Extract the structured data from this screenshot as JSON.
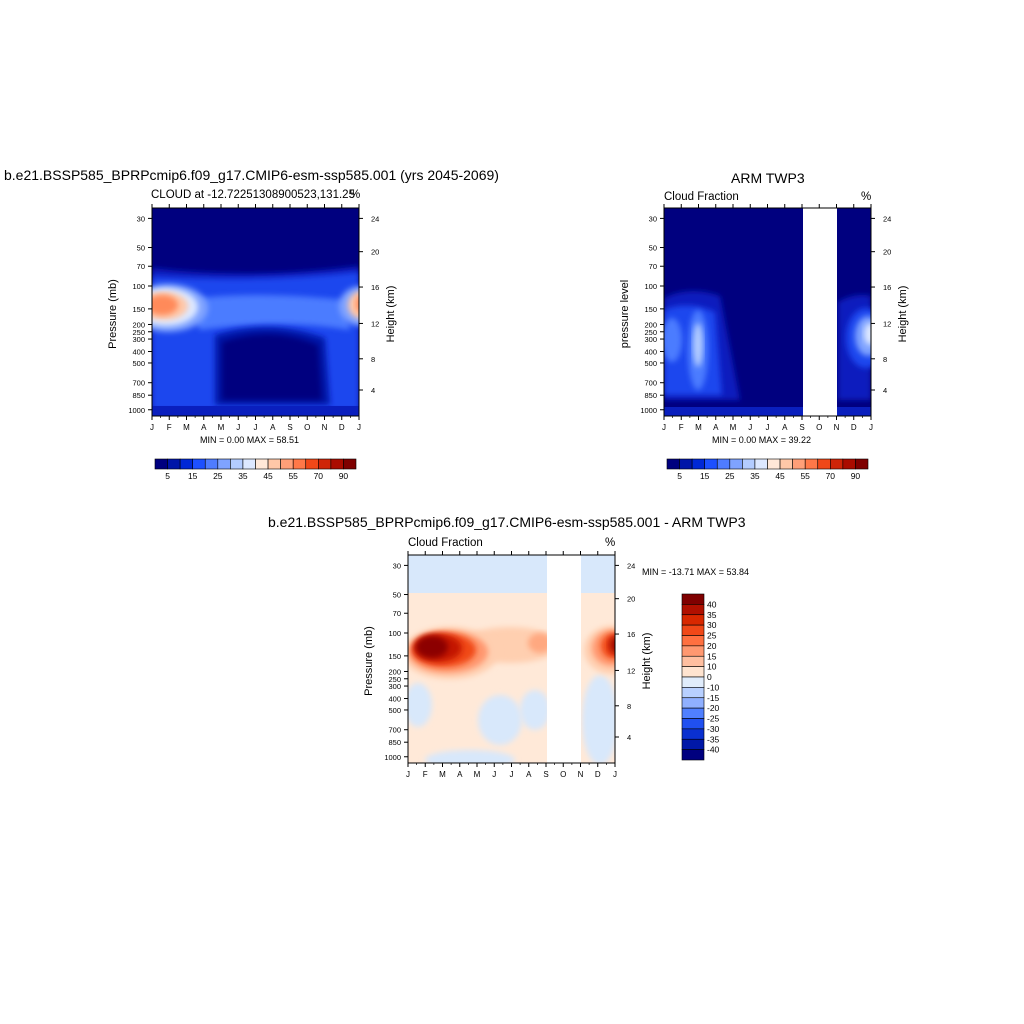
{
  "chart_data": [
    {
      "type": "heatmap",
      "title": "b.e21.BSSP585_BPRPcmip6.f09_g17.CMIP6-esm-ssp585.001 (yrs 2045-2069)",
      "subtitle_left": "CLOUD at -12.72251308900523,131.25",
      "subtitle_right": "%",
      "ylabel": "Pressure (mb)",
      "ylabel_right": "Height (km)",
      "x_ticks": [
        "J",
        "F",
        "M",
        "A",
        "M",
        "J",
        "J",
        "A",
        "S",
        "O",
        "N",
        "D",
        "J"
      ],
      "pressure_ticks": [
        "30",
        "50",
        "70",
        "100",
        "150",
        "200",
        "250",
        "300",
        "400",
        "500",
        "700",
        "850",
        "1000"
      ],
      "height_ticks": [
        "24",
        "20",
        "16",
        "12",
        "8",
        "4"
      ],
      "min_max": "MIN =   0.00 MAX =  58.51",
      "colorbar_labels": [
        "5",
        "15",
        "25",
        "35",
        "45",
        "55",
        "70",
        "90"
      ],
      "colors": [
        "#00007f",
        "#0015a8",
        "#0028d6",
        "#1d50ff",
        "#4f7cff",
        "#7fa3ff",
        "#b3ccff",
        "#dde8ff",
        "#ffe8d8",
        "#ffc8a8",
        "#ff9f78",
        "#ff7848",
        "#f04818",
        "#cf2508",
        "#aa0c00",
        "#7f0000"
      ]
    },
    {
      "type": "heatmap",
      "title": "ARM TWP3",
      "subtitle_left": "Cloud Fraction",
      "subtitle_right": "%",
      "ylabel": "pressure level",
      "ylabel_right": "Height (km)",
      "x_ticks": [
        "J",
        "F",
        "M",
        "A",
        "M",
        "J",
        "J",
        "A",
        "S",
        "O",
        "N",
        "D",
        "J"
      ],
      "pressure_ticks": [
        "30",
        "50",
        "70",
        "100",
        "150",
        "200",
        "250",
        "300",
        "400",
        "500",
        "700",
        "850",
        "1000"
      ],
      "height_ticks": [
        "24",
        "20",
        "16",
        "12",
        "8",
        "4"
      ],
      "min_max": "MIN =   0.00 MAX =  39.22",
      "colorbar_labels": [
        "5",
        "15",
        "25",
        "35",
        "45",
        "55",
        "70",
        "90"
      ],
      "missing_months": [
        "Oct"
      ]
    },
    {
      "type": "heatmap",
      "title": "b.e21.BSSP585_BPRPcmip6.f09_g17.CMIP6-esm-ssp585.001 - ARM TWP3",
      "subtitle_left": "Cloud Fraction",
      "subtitle_right": "%",
      "ylabel": "Pressure (mb)",
      "ylabel_right": "Height (km)",
      "x_ticks": [
        "J",
        "F",
        "M",
        "A",
        "M",
        "J",
        "J",
        "A",
        "S",
        "O",
        "N",
        "D",
        "J"
      ],
      "pressure_ticks": [
        "30",
        "50",
        "70",
        "100",
        "150",
        "200",
        "250",
        "300",
        "400",
        "500",
        "700",
        "850",
        "1000"
      ],
      "height_ticks": [
        "24",
        "20",
        "16",
        "12",
        "8",
        "4"
      ],
      "min_max": "MIN = -13.71 MAX =  53.84",
      "colorbar_labels": [
        "40",
        "35",
        "30",
        "25",
        "20",
        "15",
        "10",
        "0",
        "-10",
        "-15",
        "-20",
        "-25",
        "-30",
        "-35",
        "-40"
      ],
      "colors": [
        "#7f0000",
        "#b01000",
        "#d82800",
        "#f04818",
        "#ff7040",
        "#ff9870",
        "#ffbfa0",
        "#ffe4d0",
        "#e0ecfb",
        "#b8d0ff",
        "#90b0ff",
        "#5080ff",
        "#2050f0",
        "#0a30d0",
        "#0018a8",
        "#00007f"
      ],
      "missing_months": [
        "Oct"
      ]
    }
  ]
}
